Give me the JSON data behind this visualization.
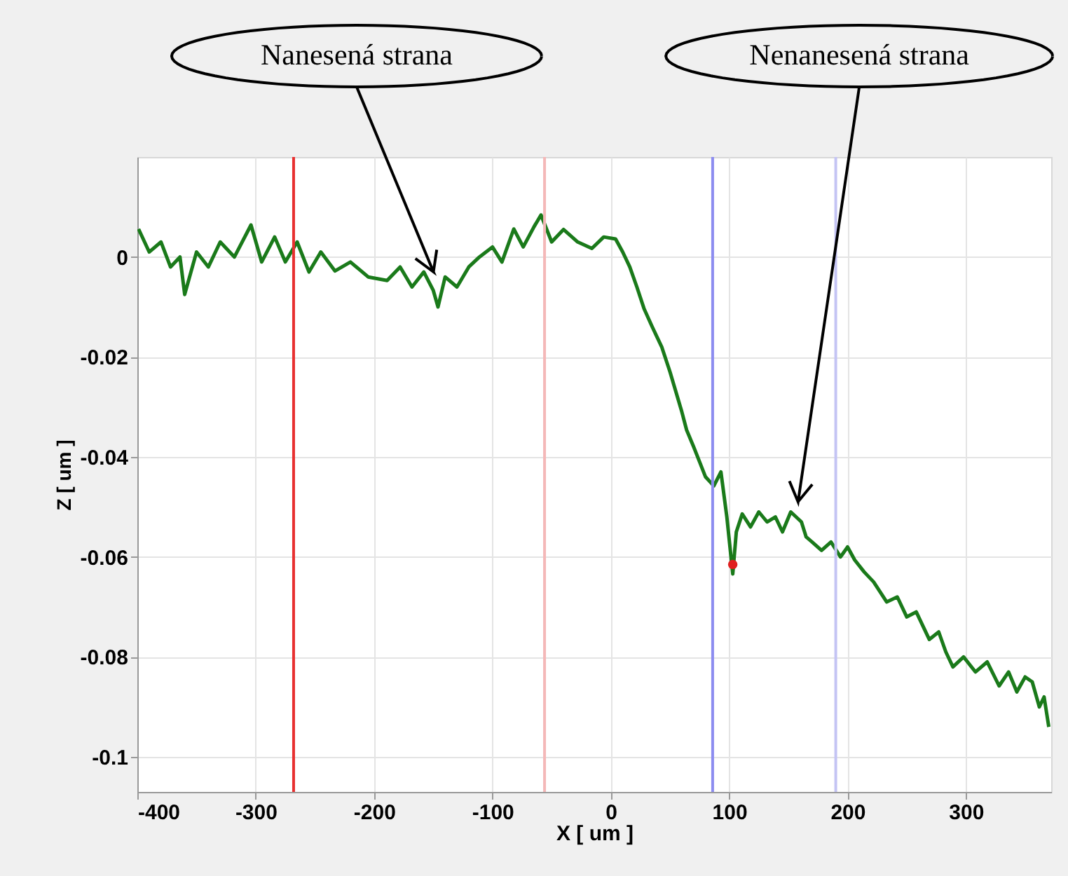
{
  "chart_data": {
    "type": "line",
    "xlabel": "X [ um ]",
    "ylabel": "Z [ um ]",
    "xlim": [
      -400,
      372
    ],
    "ylim": [
      -0.107,
      0.02
    ],
    "xticks": [
      -400,
      -300,
      -200,
      -100,
      0,
      100,
      200,
      300
    ],
    "yticks": [
      0,
      -0.02,
      -0.04,
      -0.06,
      -0.08,
      -0.1
    ],
    "grid": true,
    "marker": "none",
    "line_style": "solid",
    "series": [
      {
        "color": "#1a7a1a",
        "x": [
          -399,
          -390,
          -380,
          -372,
          -364,
          -360,
          -350,
          -340,
          -330,
          -318,
          -304,
          -295,
          -284,
          -275,
          -265,
          -255,
          -245,
          -233,
          -220,
          -205,
          -189,
          -178,
          -168,
          -158,
          -150,
          -146,
          -140,
          -130,
          -120,
          -111,
          -100,
          -92,
          -82,
          -74,
          -65,
          -59,
          -50,
          -40,
          -28,
          -16,
          -6,
          4,
          10,
          16,
          22,
          28,
          35,
          43,
          50,
          55,
          60,
          64,
          70,
          75,
          80,
          87,
          93,
          98,
          103,
          106,
          111,
          118,
          125,
          132,
          139,
          145,
          152,
          161,
          165,
          170,
          178,
          186,
          194,
          200,
          206,
          214,
          222,
          233,
          242,
          250,
          258,
          269,
          277,
          283,
          289,
          298,
          308,
          318,
          328,
          336,
          343,
          350,
          356,
          362,
          366,
          370
        ],
        "values": [
          0.0056,
          0.001,
          0.003,
          -0.002,
          0.0,
          -0.0075,
          0.001,
          -0.002,
          0.003,
          0.0,
          0.0064,
          -0.001,
          0.004,
          -0.001,
          0.003,
          -0.003,
          0.001,
          -0.0028,
          -0.001,
          -0.004,
          -0.0047,
          -0.002,
          -0.006,
          -0.003,
          -0.0067,
          -0.01,
          -0.004,
          -0.006,
          -0.002,
          0.0,
          0.002,
          -0.001,
          0.0056,
          0.002,
          0.006,
          0.0084,
          0.003,
          0.0055,
          0.003,
          0.0017,
          0.004,
          0.0036,
          0.001,
          -0.002,
          -0.006,
          -0.0103,
          -0.014,
          -0.018,
          -0.023,
          -0.027,
          -0.031,
          -0.0346,
          -0.038,
          -0.041,
          -0.044,
          -0.0458,
          -0.043,
          -0.052,
          -0.0634,
          -0.055,
          -0.0514,
          -0.054,
          -0.051,
          -0.053,
          -0.052,
          -0.055,
          -0.051,
          -0.053,
          -0.056,
          -0.057,
          -0.0587,
          -0.057,
          -0.06,
          -0.058,
          -0.0606,
          -0.063,
          -0.065,
          -0.069,
          -0.068,
          -0.072,
          -0.071,
          -0.0765,
          -0.075,
          -0.079,
          -0.082,
          -0.08,
          -0.083,
          -0.081,
          -0.0858,
          -0.083,
          -0.087,
          -0.084,
          -0.085,
          -0.09,
          -0.088,
          -0.094
        ]
      },
      {
        "type": "scatter",
        "marker": "circle",
        "color": "#e02020",
        "x": [
          103
        ],
        "values": [
          -0.0615
        ]
      }
    ],
    "ref_lines": [
      {
        "axis": "x",
        "value": -268,
        "color": "#e83030"
      },
      {
        "axis": "x",
        "value": -56,
        "color": "#f4b8b8"
      },
      {
        "axis": "x",
        "value": 86,
        "color": "#8c8cf0"
      },
      {
        "axis": "x",
        "value": 190,
        "color": "#c4c4f4"
      }
    ],
    "annotations": [
      "Nanesená strana",
      "Nenanesená strana"
    ]
  }
}
